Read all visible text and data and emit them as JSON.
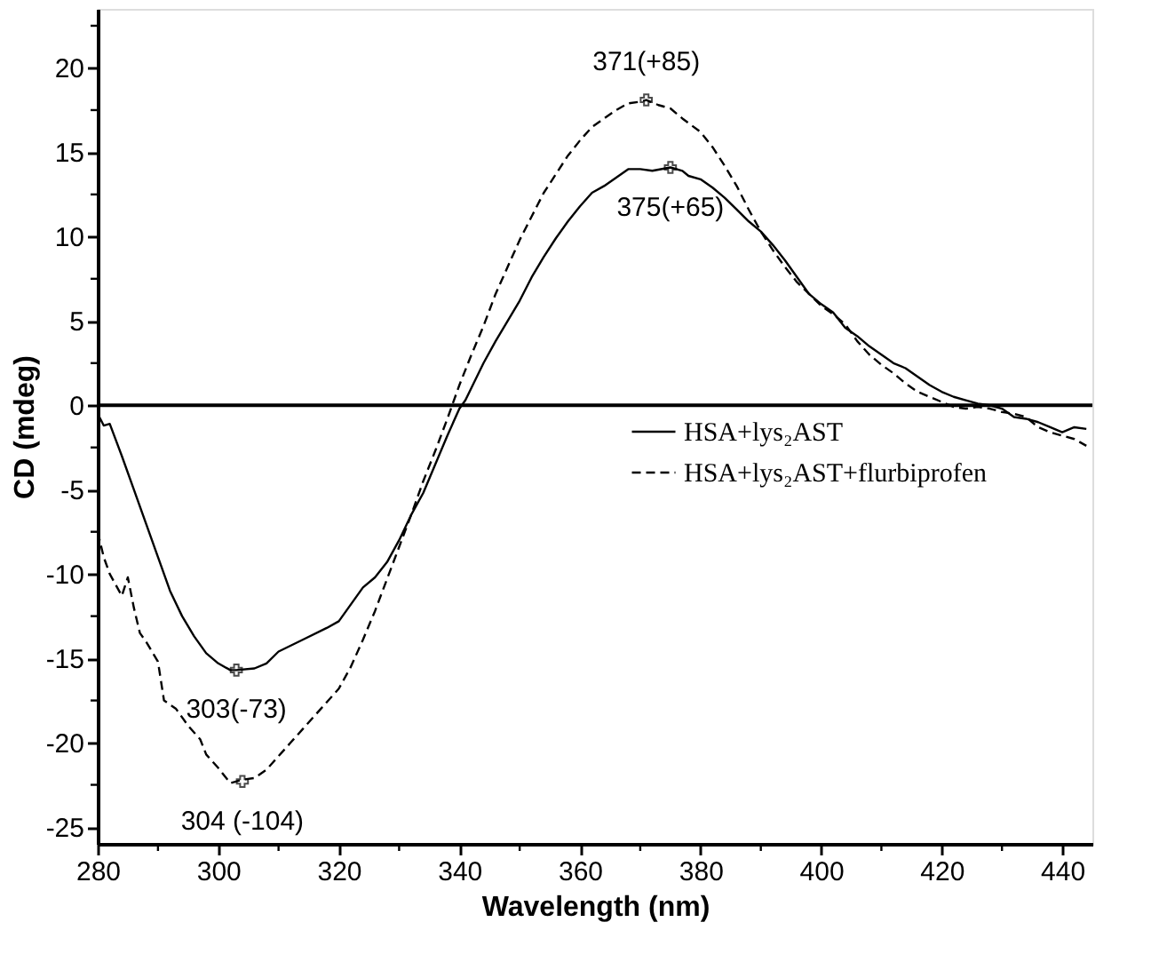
{
  "chart_data": {
    "type": "line",
    "xlabel": "Wavelength (nm)",
    "ylabel": "CD (mdeg)",
    "xlim": [
      280,
      445
    ],
    "ylim": [
      -26,
      23.5
    ],
    "xticks": [
      280,
      {
        "value": 290,
        "label": null
      },
      300,
      {
        "value": 310,
        "label": null
      },
      320,
      {
        "value": 330,
        "label": null
      },
      340,
      {
        "value": 350,
        "label": null
      },
      360,
      {
        "value": 370,
        "label": null
      },
      380,
      {
        "value": 390,
        "label": null
      },
      400,
      {
        "value": 410,
        "label": null
      },
      420,
      {
        "value": 430,
        "label": null
      },
      440
    ],
    "yticks": [
      -25,
      {
        "value": -22.5,
        "label": null
      },
      -20,
      {
        "value": -17.5,
        "label": null
      },
      -15,
      {
        "value": -12.5,
        "label": null
      },
      -10,
      {
        "value": -7.5,
        "label": null
      },
      -5,
      {
        "value": -2.5,
        "label": null
      },
      0,
      {
        "value": 2.5,
        "label": null
      },
      5,
      {
        "value": 7.5,
        "label": null
      },
      10,
      {
        "value": 12.5,
        "label": null
      },
      15,
      {
        "value": 17.5,
        "label": null
      },
      20,
      {
        "value": 22.5,
        "label": null
      }
    ],
    "grid": false,
    "legend": "right",
    "marker": "none",
    "ref_lines": [
      {
        "axis": "y",
        "value": 0,
        "color": "#000000",
        "line_style": "solid"
      }
    ],
    "annotations": [
      {
        "text": "371(+85)",
        "x": 371,
        "y": 18.1
      },
      {
        "text": "375(+65)",
        "x": 375,
        "y": 14.1
      },
      {
        "text": "303(-73)",
        "x": 303,
        "y": -15.7
      },
      {
        "text": "304 (-104)",
        "x": 304,
        "y": -22.3
      }
    ],
    "series": [
      {
        "name": "HSA+lys₂AST",
        "color": "#000000",
        "line_style": "solid",
        "x": [
          280,
          281,
          282,
          284,
          286,
          288,
          290,
          292,
          294,
          296,
          298,
          300,
          302,
          303,
          306,
          308,
          310,
          314,
          318,
          320,
          322,
          324,
          326,
          328,
          330,
          332,
          334,
          336,
          338,
          340,
          341,
          344,
          346,
          348,
          350,
          352,
          354,
          356,
          358,
          360,
          362,
          364,
          366,
          368,
          370,
          372,
          375,
          377,
          378,
          380,
          382,
          384,
          386,
          388,
          390,
          392,
          394,
          396,
          398,
          400,
          402,
          404,
          406,
          408,
          410,
          412,
          414,
          416,
          418,
          420,
          422,
          424,
          426,
          428,
          430,
          432,
          434,
          436,
          438,
          440,
          442,
          444
        ],
        "values": [
          -0.5,
          -1.2,
          -1.1,
          -3,
          -5,
          -7,
          -9,
          -11,
          -12.5,
          -13.7,
          -14.7,
          -15.3,
          -15.7,
          -15.7,
          -15.6,
          -15.3,
          -14.6,
          -13.9,
          -13.2,
          -12.8,
          -11.8,
          -10.8,
          -10.2,
          -9.3,
          -8,
          -6.5,
          -5.2,
          -3.5,
          -1.8,
          -0.2,
          0.3,
          2.5,
          3.8,
          5,
          6.2,
          7.6,
          8.8,
          9.9,
          10.9,
          11.8,
          12.6,
          13.0,
          13.5,
          14.0,
          14.0,
          13.9,
          14.1,
          13.9,
          13.6,
          13.4,
          12.9,
          12.3,
          11.6,
          10.9,
          10.3,
          9.5,
          8.6,
          7.6,
          6.6,
          6.0,
          5.5,
          4.6,
          4.1,
          3.5,
          3.0,
          2.5,
          2.2,
          1.7,
          1.2,
          0.8,
          0.5,
          0.3,
          0.1,
          0.0,
          -0.2,
          -0.7,
          -0.8,
          -1.0,
          -1.3,
          -1.6,
          -1.3,
          -1.4
        ]
      },
      {
        "name": "HSA+lys₂AST+flurbiprofen",
        "color": "#000000",
        "line_style": "dashed",
        "x": [
          280,
          281,
          282,
          284,
          285,
          286,
          287,
          288,
          290,
          291,
          293,
          295,
          297,
          298,
          300,
          302,
          304,
          306,
          308,
          310,
          312,
          314,
          316,
          318,
          320,
          322,
          324,
          326,
          328,
          330,
          332,
          334,
          336,
          338,
          340,
          342,
          344,
          346,
          348,
          350,
          352,
          354,
          356,
          358,
          360,
          362,
          364,
          366,
          368,
          370,
          371,
          373,
          375,
          377,
          380,
          382,
          384,
          386,
          388,
          390,
          392,
          394,
          396,
          398,
          400,
          402,
          404,
          406,
          408,
          410,
          412,
          414,
          416,
          418,
          420,
          422,
          424,
          426,
          428,
          430,
          432,
          434,
          436,
          438,
          440,
          442,
          444
        ],
        "values": [
          -7.5,
          -9,
          -10,
          -11.3,
          -10.2,
          -12,
          -13.5,
          -14,
          -15.2,
          -17.5,
          -18,
          -19,
          -19.8,
          -20.7,
          -21.5,
          -22.4,
          -22.2,
          -22.1,
          -21.6,
          -20.8,
          -20.0,
          -19.2,
          -18.4,
          -17.6,
          -16.8,
          -15.5,
          -13.9,
          -12.2,
          -10.3,
          -8.4,
          -6.5,
          -4.5,
          -2.7,
          -0.8,
          1.2,
          3.0,
          4.7,
          6.6,
          8.2,
          9.8,
          11.2,
          12.6,
          13.7,
          14.8,
          15.7,
          16.5,
          17.0,
          17.5,
          17.9,
          18.0,
          18.1,
          17.8,
          17.6,
          17.0,
          16.2,
          15.3,
          14.2,
          13.0,
          11.6,
          10.3,
          9.2,
          8.2,
          7.3,
          6.6,
          5.9,
          5.4,
          4.8,
          3.8,
          3.0,
          2.4,
          1.9,
          1.3,
          0.8,
          0.5,
          0.2,
          -0.1,
          -0.2,
          -0.1,
          -0.2,
          -0.4,
          -0.5,
          -0.7,
          -1.3,
          -1.6,
          -1.8,
          -2.0,
          -2.4
        ]
      }
    ]
  }
}
